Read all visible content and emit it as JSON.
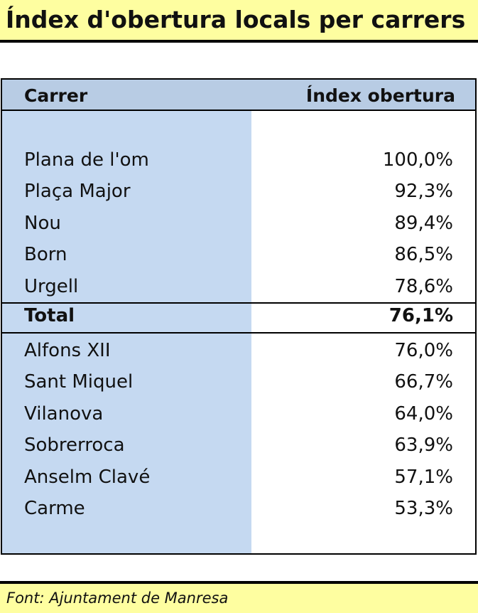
{
  "title": "Índex d'obertura locals per carrers",
  "table": {
    "header": {
      "street": "Carrer",
      "index": "Índex obertura"
    },
    "rows_top": [
      {
        "street": "Plana de l'om",
        "value": "100,0%"
      },
      {
        "street": "Plaça Major",
        "value": "92,3%"
      },
      {
        "street": "Nou",
        "value": "89,4%"
      },
      {
        "street": "Born",
        "value": "86,5%"
      },
      {
        "street": "Urgell",
        "value": "78,6%"
      }
    ],
    "total": {
      "street": "Total",
      "value": "76,1%"
    },
    "rows_bottom": [
      {
        "street": "Alfons XII",
        "value": "76,0%"
      },
      {
        "street": "Sant Miquel",
        "value": "66,7%"
      },
      {
        "street": "Vilanova",
        "value": "64,0%"
      },
      {
        "street": "Sobrerroca",
        "value": "63,9%"
      },
      {
        "street": "Anselm Clavé",
        "value": "57,1%"
      },
      {
        "street": "Carme",
        "value": "53,3%"
      }
    ]
  },
  "source": "Font: Ajuntament de Manresa",
  "colors": {
    "title_bg": "#fefea0",
    "header_bg": "#b8cce4",
    "column_bg": "#c5d9f1"
  }
}
